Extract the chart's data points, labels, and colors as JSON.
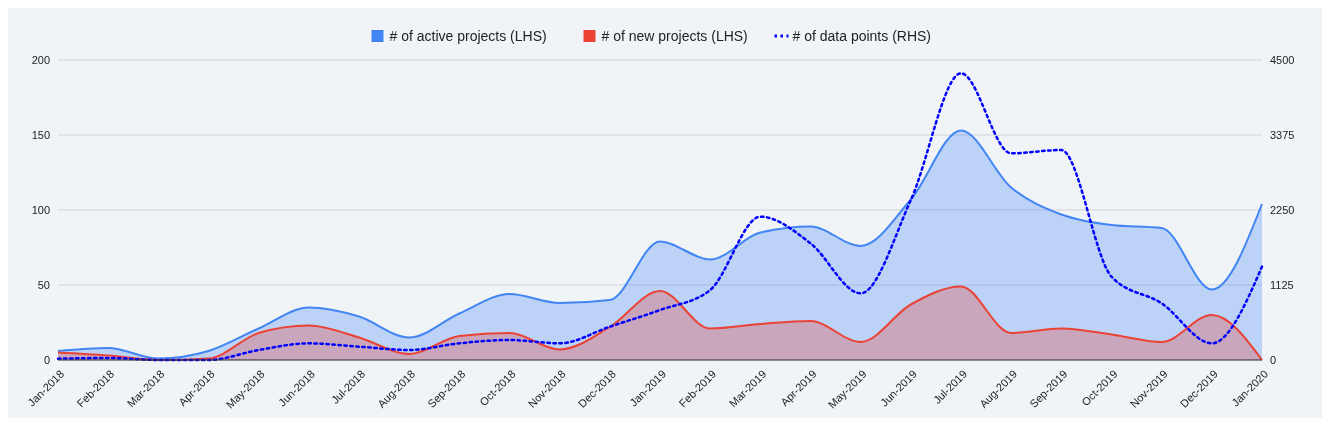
{
  "chart_data": {
    "type": "area",
    "categories": [
      "Jan-2018",
      "Feb-2018",
      "Mar-2018",
      "Apr-2018",
      "May-2018",
      "Jun-2018",
      "Jul-2018",
      "Aug-2018",
      "Sep-2018",
      "Oct-2018",
      "Nov-2018",
      "Dec-2018",
      "Jan-2019",
      "Feb-2019",
      "Mar-2019",
      "Apr-2019",
      "May-2019",
      "Jun-2019",
      "Jul-2019",
      "Aug-2019",
      "Sep-2019",
      "Oct-2019",
      "Nov-2019",
      "Dec-2019",
      "Jan-2020"
    ],
    "series": [
      {
        "name": "# of active projects (LHS)",
        "color": "#4285f4",
        "values": [
          6,
          8,
          1,
          6,
          21,
          35,
          29,
          15,
          31,
          44,
          38,
          40,
          79,
          67,
          85,
          89,
          76,
          107,
          153,
          115,
          97,
          90,
          88,
          47,
          104
        ]
      },
      {
        "name": "# of new projects (LHS)",
        "color": "#ea4335",
        "values": [
          5,
          3,
          0,
          1,
          18,
          23,
          15,
          4,
          16,
          18,
          7,
          22,
          46,
          21,
          24,
          26,
          12,
          37,
          49,
          18,
          21,
          17,
          12,
          30,
          0
        ]
      },
      {
        "name": "# of data points (RHS)",
        "type": "line",
        "axis": "y2",
        "line_style": "dotted",
        "color": "#0000ff",
        "values": [
          20,
          30,
          0,
          0,
          150,
          250,
          200,
          150,
          250,
          300,
          250,
          500,
          750,
          1050,
          2150,
          1750,
          1000,
          2400,
          4300,
          3100,
          3150,
          1250,
          850,
          250,
          1400
        ]
      }
    ],
    "ylim": [
      0,
      200
    ],
    "yticks": [
      0,
      50,
      100,
      150,
      200
    ],
    "y2lim": [
      0,
      4500
    ],
    "y2ticks": [
      0,
      1125,
      2250,
      3375,
      4500
    ],
    "grid": "y",
    "legend": "top"
  }
}
